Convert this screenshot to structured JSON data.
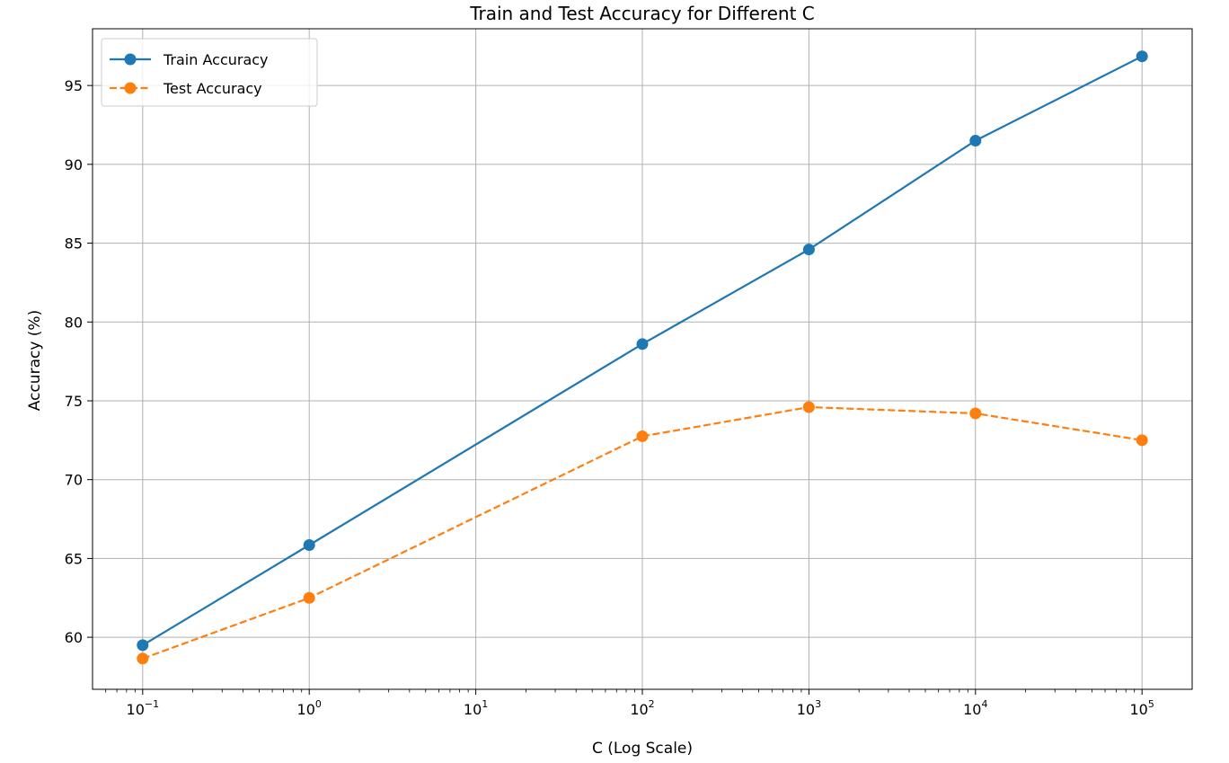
{
  "chart_data": {
    "type": "line",
    "title": "Train and Test Accuracy for Different C",
    "xlabel": "C (Log Scale)",
    "ylabel": "Accuracy (%)",
    "xscale": "log",
    "xlim": [
      0.05,
      200000
    ],
    "ylim": [
      56.7,
      98.6
    ],
    "grid": true,
    "legend_position": "top-left",
    "x": [
      0.1,
      1,
      100,
      1000,
      10000,
      100000
    ],
    "x_tick_labels": [
      {
        "value": 0.1,
        "base": "10",
        "exp": "−1"
      },
      {
        "value": 1,
        "base": "10",
        "exp": "0"
      },
      {
        "value": 10,
        "base": "10",
        "exp": "1"
      },
      {
        "value": 100,
        "base": "10",
        "exp": "2"
      },
      {
        "value": 1000,
        "base": "10",
        "exp": "3"
      },
      {
        "value": 10000,
        "base": "10",
        "exp": "4"
      },
      {
        "value": 100000,
        "base": "10",
        "exp": "5"
      }
    ],
    "y_ticks": [
      60,
      65,
      70,
      75,
      80,
      85,
      90,
      95
    ],
    "y_tick_labels": [
      "60",
      "65",
      "70",
      "75",
      "80",
      "85",
      "90",
      "95"
    ],
    "series": [
      {
        "name": "Train Accuracy",
        "values": [
          59.5,
          65.85,
          78.6,
          84.6,
          91.5,
          96.85
        ],
        "color": "#1f77b4",
        "linestyle": "solid",
        "marker": "circle"
      },
      {
        "name": "Test Accuracy",
        "values": [
          58.65,
          62.5,
          72.75,
          74.6,
          74.2,
          72.5
        ],
        "color": "#ff7f0e",
        "linestyle": "dashed",
        "marker": "circle"
      }
    ]
  }
}
